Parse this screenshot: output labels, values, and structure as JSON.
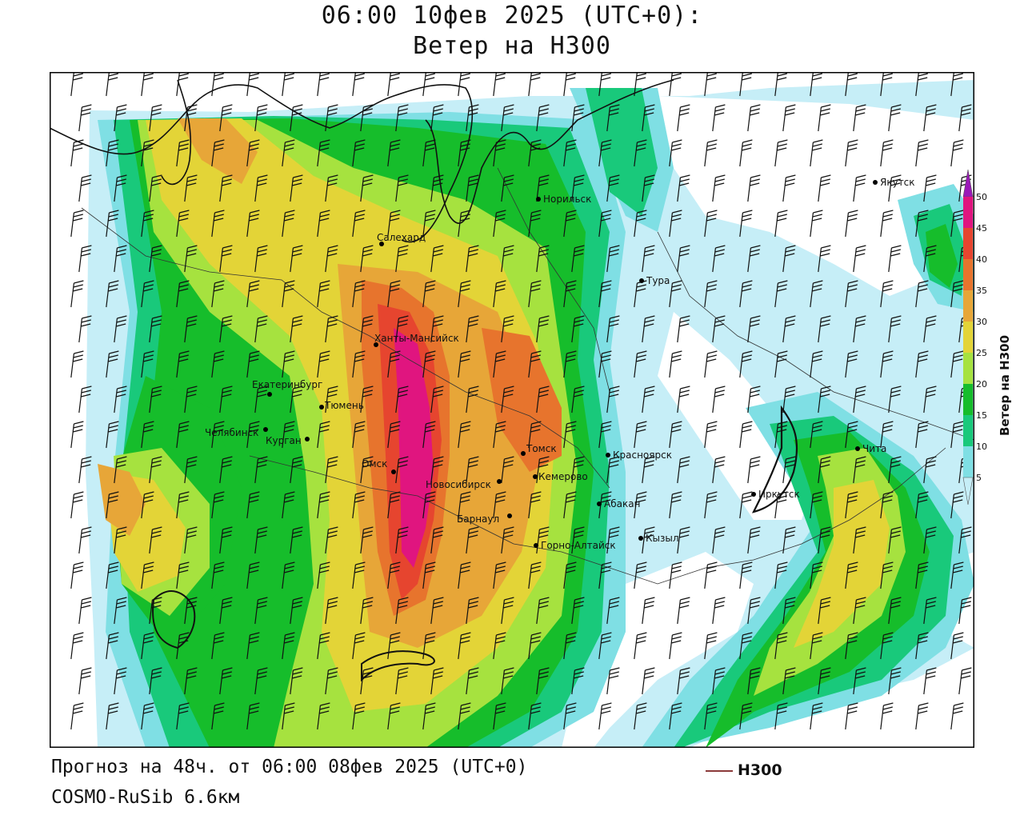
{
  "title": {
    "line1": "06:00 10фев 2025 (UTC+0):",
    "line2": "Ветер на H300"
  },
  "footer": {
    "forecast": "Прогноз на 48ч. от 06:00 08фев 2025 (UTC+0)",
    "model": "COSMO-RuSib 6.6км"
  },
  "legend": {
    "contour_label": "H300",
    "contour_color": "#8b3a3a"
  },
  "colorbar": {
    "title": "Ветер на H300",
    "levels": [
      5,
      10,
      15,
      20,
      25,
      30,
      35,
      40,
      45,
      50
    ],
    "colors": [
      "#ffffff",
      "#c6eef7",
      "#7fdfe4",
      "#19c97b",
      "#16bd2b",
      "#a6e23f",
      "#e3d437",
      "#e7a638",
      "#e7742d",
      "#e6452f",
      "#e0157f",
      "#9b19b8"
    ]
  },
  "cities": [
    {
      "name": "Якутск"
    },
    {
      "name": "Норильск"
    },
    {
      "name": "Салехард"
    },
    {
      "name": "Тура"
    },
    {
      "name": "Ханты-Мансийск"
    },
    {
      "name": "Екатеринбург"
    },
    {
      "name": "Тюмень"
    },
    {
      "name": "Челябинск"
    },
    {
      "name": "Курган"
    },
    {
      "name": "Омск"
    },
    {
      "name": "Новосибирск"
    },
    {
      "name": "Томск"
    },
    {
      "name": "Кемерово"
    },
    {
      "name": "Красноярск"
    },
    {
      "name": "Абакан"
    },
    {
      "name": "Барнаул"
    },
    {
      "name": "Горно-Алтайск"
    },
    {
      "name": "Кызыл"
    },
    {
      "name": "Иркутск"
    },
    {
      "name": "Чита"
    }
  ]
}
